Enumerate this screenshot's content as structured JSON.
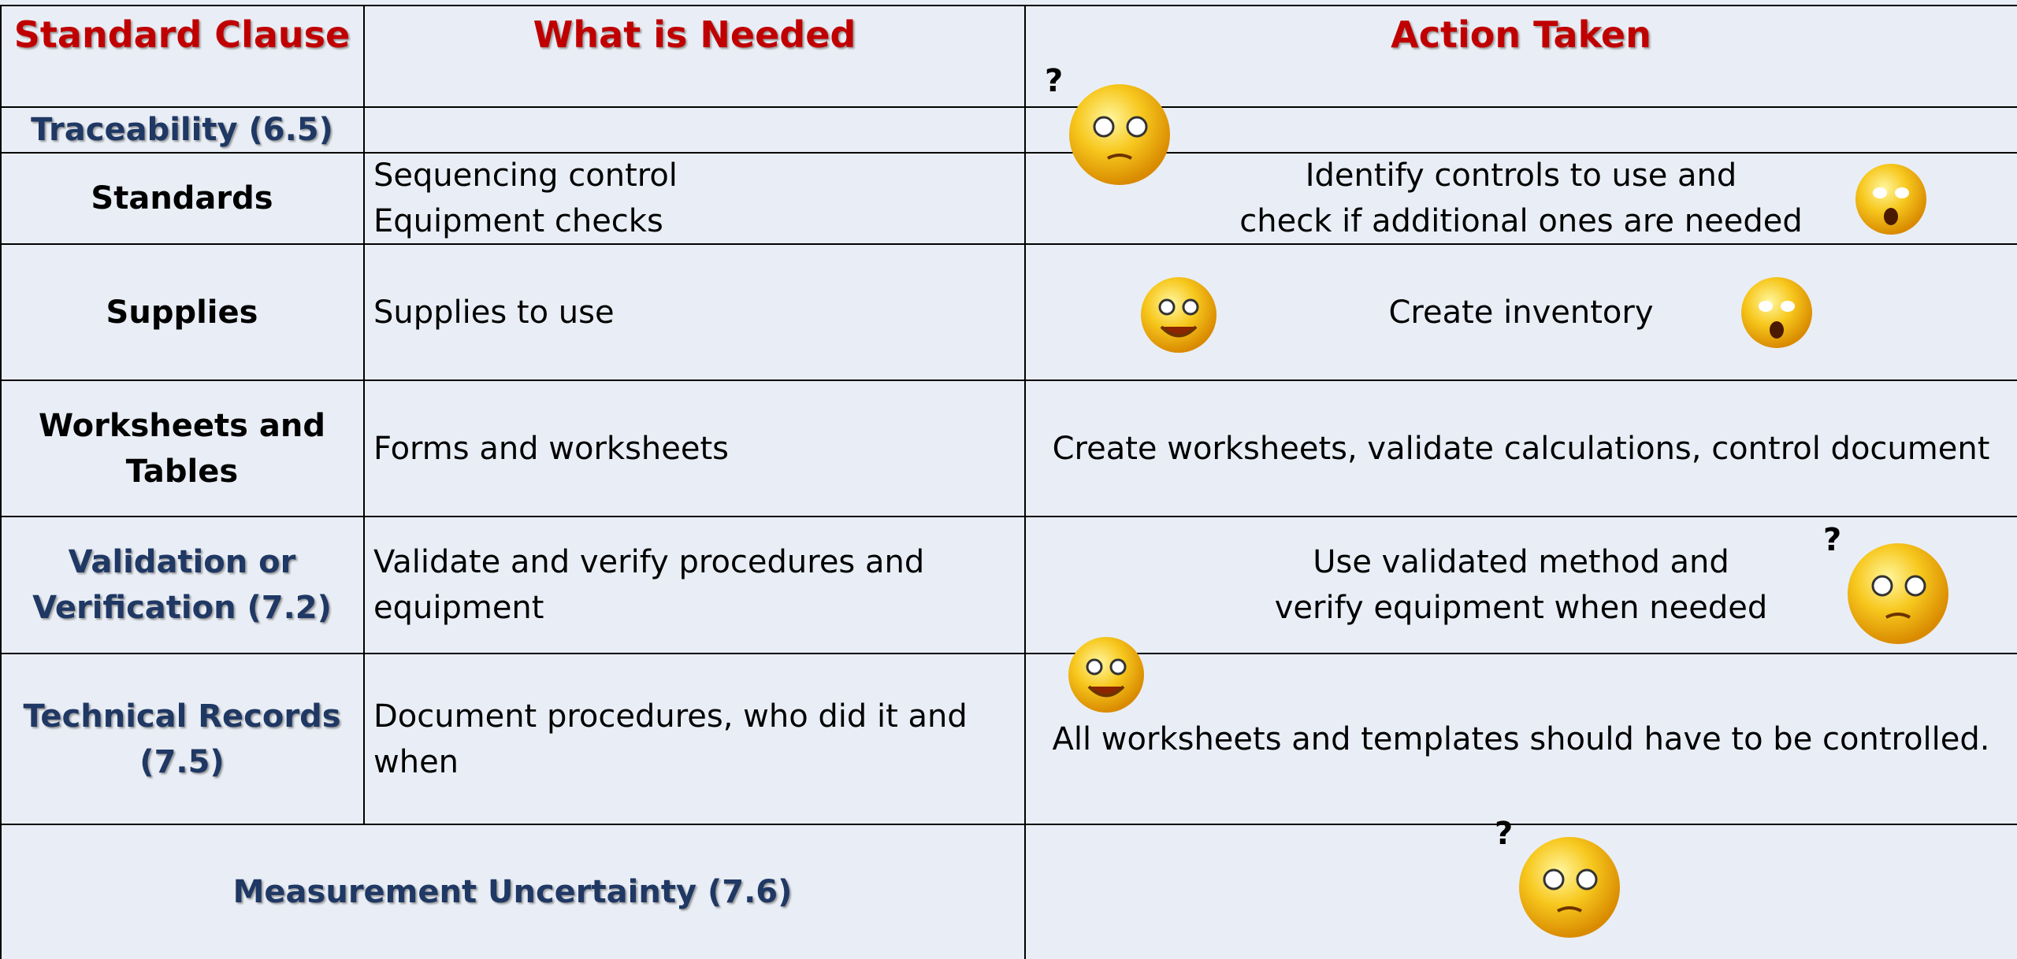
{
  "header": {
    "columns": [
      "Standard Clause",
      "What is Needed",
      "Action Taken"
    ]
  },
  "rows": [
    {
      "clause": [
        "Traceability (6.5)"
      ],
      "needed": [],
      "action": []
    },
    {
      "clause": [
        "Standards"
      ],
      "needed": [
        "Sequencing control",
        "Equipment checks"
      ],
      "action": [
        "Identify controls to use and",
        "check if additional ones are needed"
      ]
    },
    {
      "clause": [
        "Supplies"
      ],
      "needed": [
        "Supplies to use"
      ],
      "action": [
        "Create inventory"
      ]
    },
    {
      "clause": [
        "Worksheets and Tables"
      ],
      "needed": [
        "Forms and worksheets"
      ],
      "action": [
        "Create worksheets, validate calculations, control document"
      ]
    },
    {
      "clause": [
        "Validation or",
        "Verification (7.2)"
      ],
      "needed": [
        "Validate and verify procedures and",
        "equipment"
      ],
      "action": [
        "Use validated method and",
        "verify equipment when needed"
      ]
    },
    {
      "clause": [
        "Technical Records",
        "(7.5)"
      ],
      "needed": [
        "Document procedures, who did it and",
        "when"
      ],
      "action": [
        "All worksheets and templates should have to be controlled."
      ]
    },
    {
      "clause": [
        "Measurement Uncertainty (7.6)"
      ],
      "needed": [],
      "action": []
    }
  ]
}
